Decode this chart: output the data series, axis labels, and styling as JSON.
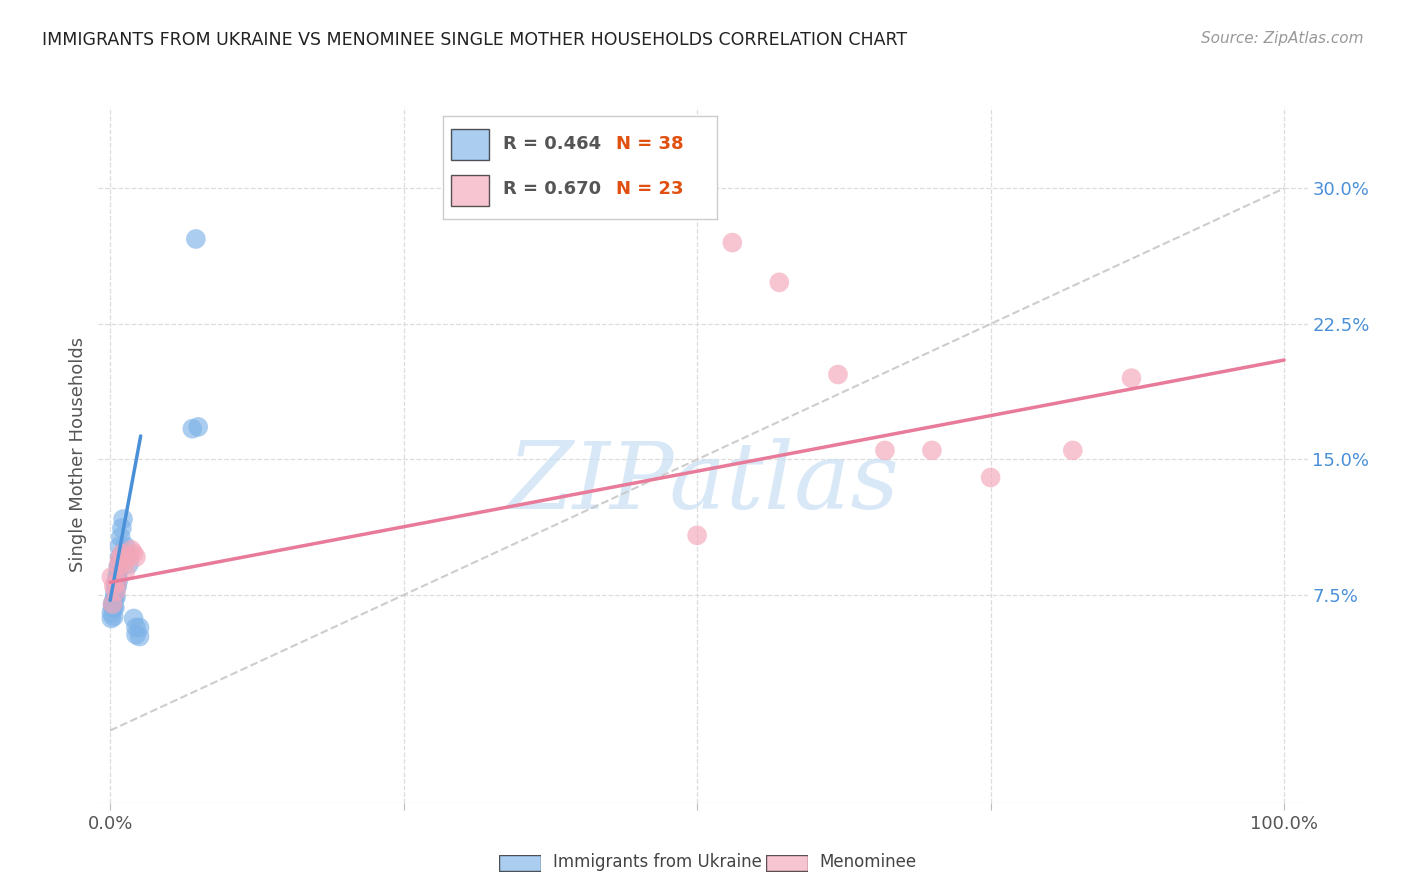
{
  "title": "IMMIGRANTS FROM UKRAINE VS MENOMINEE SINGLE MOTHER HOUSEHOLDS CORRELATION CHART",
  "source": "Source: ZipAtlas.com",
  "ylabel": "Single Mother Households",
  "ytick_values": [
    0.075,
    0.15,
    0.225,
    0.3
  ],
  "ytick_labels": [
    "7.5%",
    "15.0%",
    "22.5%",
    "30.0%"
  ],
  "xlim": [
    -0.01,
    1.02
  ],
  "ylim": [
    -0.04,
    0.345
  ],
  "ukraine_x": [
    0.001,
    0.001,
    0.002,
    0.002,
    0.003,
    0.003,
    0.003,
    0.004,
    0.004,
    0.004,
    0.005,
    0.005,
    0.005,
    0.005,
    0.006,
    0.006,
    0.006,
    0.007,
    0.007,
    0.007,
    0.008,
    0.008,
    0.009,
    0.009,
    0.01,
    0.011,
    0.012,
    0.013,
    0.015,
    0.016,
    0.02,
    0.022,
    0.022,
    0.025,
    0.025,
    0.07,
    0.073,
    0.075
  ],
  "ukraine_y": [
    0.065,
    0.062,
    0.068,
    0.07,
    0.072,
    0.068,
    0.063,
    0.076,
    0.073,
    0.068,
    0.08,
    0.082,
    0.079,
    0.074,
    0.086,
    0.084,
    0.08,
    0.091,
    0.088,
    0.083,
    0.102,
    0.096,
    0.107,
    0.095,
    0.112,
    0.117,
    0.097,
    0.102,
    0.097,
    0.092,
    0.062,
    0.057,
    0.053,
    0.057,
    0.052,
    0.167,
    0.272,
    0.168
  ],
  "menominee_x": [
    0.001,
    0.002,
    0.003,
    0.005,
    0.006,
    0.007,
    0.008,
    0.01,
    0.011,
    0.013,
    0.016,
    0.018,
    0.02,
    0.022,
    0.5,
    0.53,
    0.57,
    0.62,
    0.66,
    0.7,
    0.75,
    0.82,
    0.87
  ],
  "menominee_y": [
    0.085,
    0.07,
    0.08,
    0.077,
    0.082,
    0.091,
    0.095,
    0.098,
    0.092,
    0.088,
    0.096,
    0.1,
    0.098,
    0.096,
    0.108,
    0.27,
    0.248,
    0.197,
    0.155,
    0.155,
    0.14,
    0.155,
    0.195
  ],
  "ukraine_scatter_color": "#7fb3e8",
  "menominee_scatter_color": "#f4a7b9",
  "ukraine_line_color": "#4a90d9",
  "menominee_line_color": "#e87a9a",
  "ukraine_line_x": [
    0.0,
    0.026
  ],
  "ukraine_line_y": [
    0.072,
    0.163
  ],
  "menominee_line_x": [
    0.0,
    1.0
  ],
  "menominee_line_y": [
    0.082,
    0.205
  ],
  "diagonal_color": "#c8c8c8",
  "watermark_text": "ZIPatlas",
  "watermark_color": "#c8dff5",
  "background_color": "#ffffff",
  "grid_color": "#dddddd",
  "legend_R1": "R = 0.464",
  "legend_N1": "N = 38",
  "legend_R2": "R = 0.670",
  "legend_N2": "N = 23",
  "legend_color_R": "#555555",
  "legend_color_N": "#e05010",
  "bottom_legend_ukraine": "Immigrants from Ukraine",
  "bottom_legend_menominee": "Menominee"
}
